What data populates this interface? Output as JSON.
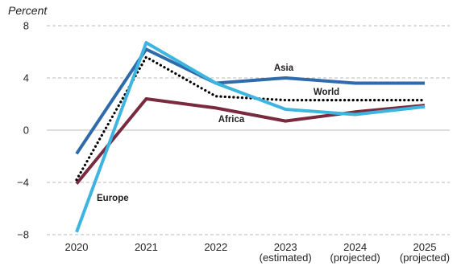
{
  "chart_data": {
    "type": "line",
    "title": "",
    "xlabel": "",
    "ylabel": "Percent",
    "ylim": [
      -8,
      8
    ],
    "yticks": [
      8,
      4,
      0,
      -4,
      -8
    ],
    "ytick_labels": [
      "8",
      "4",
      "0",
      "−4",
      "−8"
    ],
    "grid": true,
    "legend": "none (labels placed directly on lines)",
    "categories": [
      [
        "2020"
      ],
      [
        "2021"
      ],
      [
        "2022"
      ],
      [
        "2023",
        "(estimated)"
      ],
      [
        "2024",
        "(projected)"
      ],
      [
        "2025",
        "(projected)"
      ]
    ],
    "series": [
      {
        "name": "Africa",
        "values": [
          -4.1,
          2.4,
          1.7,
          0.7,
          1.4,
          1.9
        ],
        "color": "#7a2a3f",
        "style": "solid"
      },
      {
        "name": "World",
        "values": [
          -3.8,
          5.6,
          2.6,
          2.3,
          2.3,
          2.3
        ],
        "color": "#000000",
        "style": "dotted"
      },
      {
        "name": "Asia",
        "values": [
          -1.8,
          6.2,
          3.6,
          4.0,
          3.6,
          3.6
        ],
        "color": "#2f6aaa",
        "style": "solid"
      },
      {
        "name": "Europe",
        "values": [
          -7.8,
          6.7,
          3.6,
          1.6,
          1.2,
          1.8
        ],
        "color": "#3db5e0",
        "style": "solid"
      }
    ]
  }
}
